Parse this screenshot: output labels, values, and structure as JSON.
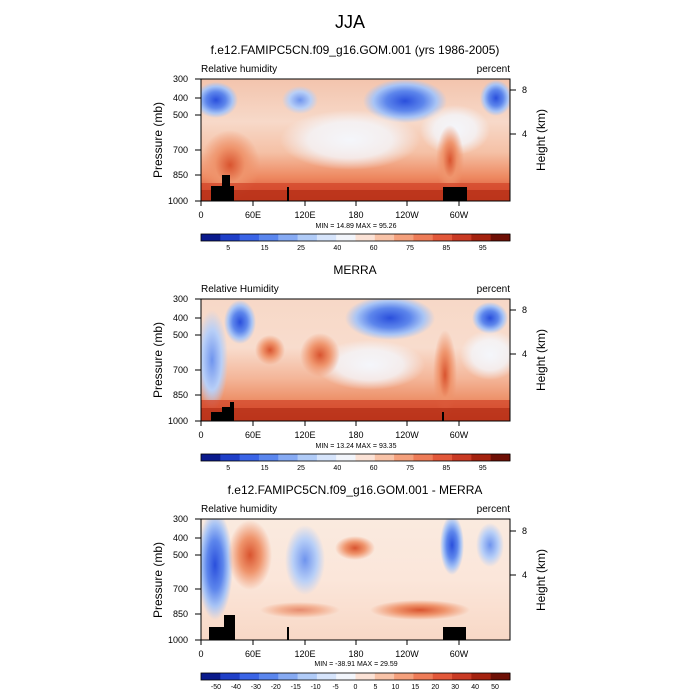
{
  "page": {
    "title": "JJA"
  },
  "chart_data": [
    {
      "type": "heatmap",
      "title": "f.e12.FAMIPC5CN.f09_g16.GOM.001 (yrs 1986-2005)",
      "left_label": "Relative humidity",
      "right_label": "percent",
      "ylabel": "Pressure (mb)",
      "ylabel_right": "Height (km)",
      "x_ticks": [
        "0",
        "60E",
        "120E",
        "180",
        "120W",
        "60W"
      ],
      "y_ticks": [
        "300",
        "400",
        "500",
        "700",
        "850",
        "1000"
      ],
      "y_right_ticks": [
        "8",
        "4"
      ],
      "stats": "MIN = 14.89  MAX = 95.26",
      "colorbar_labels": [
        "5",
        "15",
        "25",
        "40",
        "60",
        "75",
        "85",
        "95"
      ],
      "colorbar_colors": [
        "#0a1a8c",
        "#1f3fc8",
        "#3a64e6",
        "#5a86ee",
        "#86aaf3",
        "#b0cbf7",
        "#d6e4fb",
        "#f2f5fb",
        "#fbe2d6",
        "#f8c3a8",
        "#f4a07c",
        "#ee7c58",
        "#e2583a",
        "#c93a24",
        "#a4220f",
        "#6e0f05"
      ],
      "terrain_color": "#000000"
    },
    {
      "type": "heatmap",
      "title": "MERRA",
      "left_label": "Relative Humidity",
      "right_label": "percent",
      "ylabel": "Pressure (mb)",
      "ylabel_right": "Height (km)",
      "x_ticks": [
        "0",
        "60E",
        "120E",
        "180",
        "120W",
        "60W"
      ],
      "y_ticks": [
        "300",
        "400",
        "500",
        "700",
        "850",
        "1000"
      ],
      "y_right_ticks": [
        "8",
        "4"
      ],
      "stats": "MIN = 13.24  MAX = 93.35",
      "colorbar_labels": [
        "5",
        "15",
        "25",
        "40",
        "60",
        "75",
        "85",
        "95"
      ],
      "colorbar_colors": [
        "#0a1a8c",
        "#1f3fc8",
        "#3a64e6",
        "#5a86ee",
        "#86aaf3",
        "#b0cbf7",
        "#d6e4fb",
        "#f2f5fb",
        "#fbe2d6",
        "#f8c3a8",
        "#f4a07c",
        "#ee7c58",
        "#e2583a",
        "#c93a24",
        "#a4220f",
        "#6e0f05"
      ],
      "terrain_color": "#000000"
    },
    {
      "type": "heatmap",
      "title": "f.e12.FAMIPC5CN.f09_g16.GOM.001 - MERRA",
      "left_label": "Relative humidity",
      "right_label": "percent",
      "ylabel": "Pressure (mb)",
      "ylabel_right": "Height (km)",
      "x_ticks": [
        "0",
        "60E",
        "120E",
        "180",
        "120W",
        "60W"
      ],
      "y_ticks": [
        "300",
        "400",
        "500",
        "700",
        "850",
        "1000"
      ],
      "y_right_ticks": [
        "8",
        "4"
      ],
      "stats": "MIN = -38.91  MAX = 29.59",
      "colorbar_labels": [
        "-50",
        "-40",
        "-30",
        "-20",
        "-15",
        "-10",
        "-5",
        "0",
        "5",
        "10",
        "15",
        "20",
        "30",
        "40",
        "50"
      ],
      "colorbar_colors": [
        "#0a1a8c",
        "#1f3fc8",
        "#3a64e6",
        "#5a86ee",
        "#86aaf3",
        "#b0cbf7",
        "#d6e4fb",
        "#f2f5fb",
        "#fbe2d6",
        "#f8c3a8",
        "#f4a07c",
        "#ee7c58",
        "#e2583a",
        "#c93a24",
        "#a4220f",
        "#6e0f05"
      ],
      "terrain_color": "#000000"
    }
  ]
}
